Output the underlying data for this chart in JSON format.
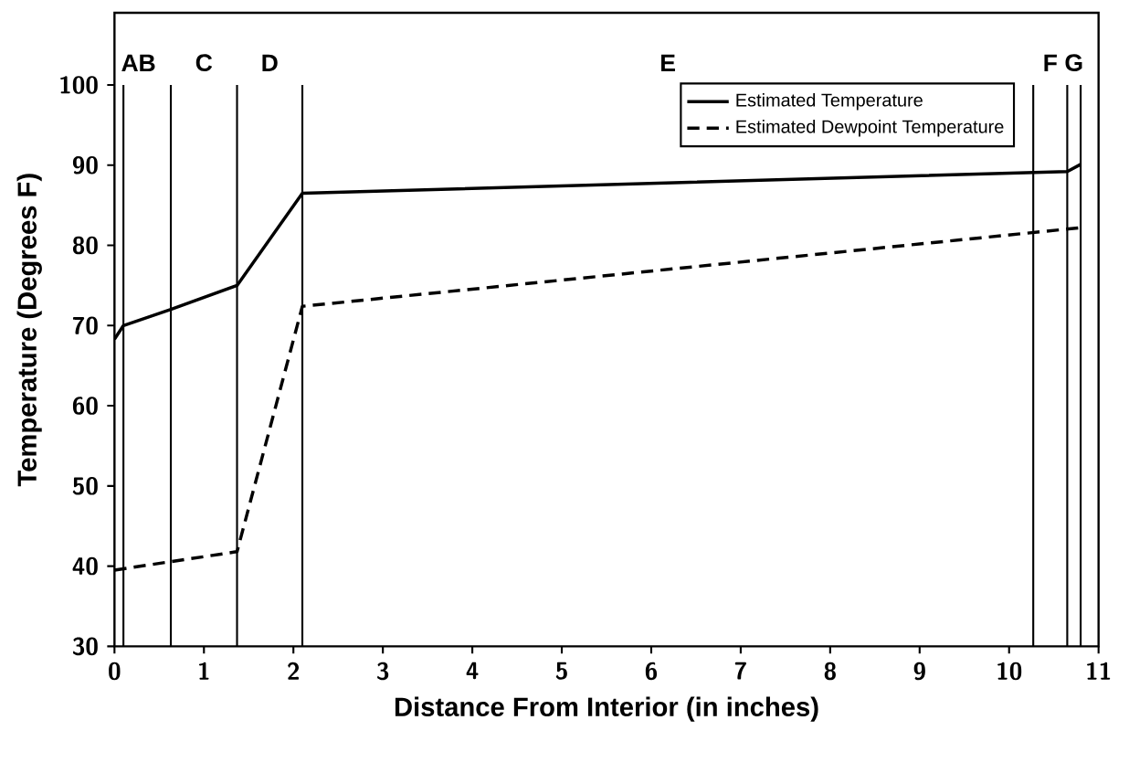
{
  "chart_data": {
    "type": "line",
    "xlabel": "Distance From Interior (in inches)",
    "ylabel": "Temperature (Degrees F)",
    "xlim": [
      0,
      11
    ],
    "ylim": [
      30,
      109
    ],
    "xticks": [
      0,
      1,
      2,
      3,
      4,
      5,
      6,
      7,
      8,
      9,
      10,
      11
    ],
    "yticks": [
      30,
      40,
      50,
      60,
      70,
      80,
      90,
      100
    ],
    "grid": false,
    "legend": "top right",
    "marker": "none",
    "series": [
      {
        "name": "Estimated Temperature",
        "color": "#000000",
        "line_style": "solid",
        "x": [
          0,
          0.1,
          0.63,
          1.37,
          2.1,
          10.65,
          10.8
        ],
        "values": [
          68.3,
          70,
          72,
          75,
          86.5,
          89.2,
          90.1
        ]
      },
      {
        "name": "Estimated Dewpoint Temperature",
        "color": "#000000",
        "line_style": "dashed",
        "x": [
          0,
          1.37,
          2.1,
          10.8
        ],
        "values": [
          39.5,
          41.8,
          72.4,
          82.2
        ]
      }
    ],
    "ref_lines": [
      {
        "axis": "x",
        "value": 0.1,
        "color": "#000000"
      },
      {
        "axis": "x",
        "value": 0.63,
        "color": "#000000"
      },
      {
        "axis": "x",
        "value": 1.37,
        "color": "#000000"
      },
      {
        "axis": "x",
        "value": 2.1,
        "color": "#000000"
      },
      {
        "axis": "x",
        "value": 10.27,
        "color": "#000000"
      },
      {
        "axis": "x",
        "value": 10.65,
        "color": "#000000"
      },
      {
        "axis": "x",
        "value": 10.8,
        "color": "#000000"
      }
    ],
    "annotations": [
      "A",
      "B",
      "C",
      "D",
      "E",
      "F",
      "G"
    ]
  }
}
